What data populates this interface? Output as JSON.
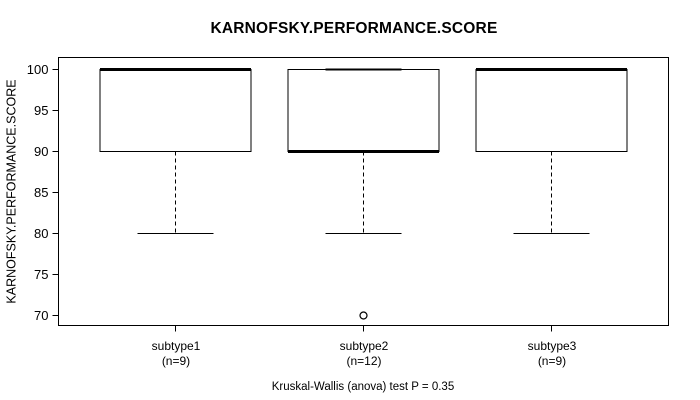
{
  "chart_data": {
    "type": "boxplot",
    "title": "KARNOFSKY.PERFORMANCE.SCORE",
    "ylabel": "KARNOFSKY.PERFORMANCE.SCORE",
    "xlabel": "",
    "footer": "Kruskal-Wallis (anova) test P = 0.35",
    "grid": false,
    "legend": "none",
    "ylim": [
      68.8,
      101.2
    ],
    "yticks": [
      70,
      75,
      80,
      85,
      90,
      95,
      100
    ],
    "colors": {
      "foreground": "#000000",
      "background": "#ffffff"
    },
    "groups": [
      {
        "label": "subtype1",
        "sublabel": "(n=9)",
        "n": 9,
        "whisker_low": 80,
        "q1": 90,
        "median": 100,
        "q3": 100,
        "whisker_high": 100,
        "outliers": []
      },
      {
        "label": "subtype2",
        "sublabel": "(n=12)",
        "n": 12,
        "whisker_low": 80,
        "q1": 90,
        "median": 90,
        "q3": 100,
        "whisker_high": 100,
        "outliers": [
          70
        ]
      },
      {
        "label": "subtype3",
        "sublabel": "(n=9)",
        "n": 9,
        "whisker_low": 80,
        "q1": 90,
        "median": 100,
        "q3": 100,
        "whisker_high": 100,
        "outliers": []
      }
    ]
  }
}
